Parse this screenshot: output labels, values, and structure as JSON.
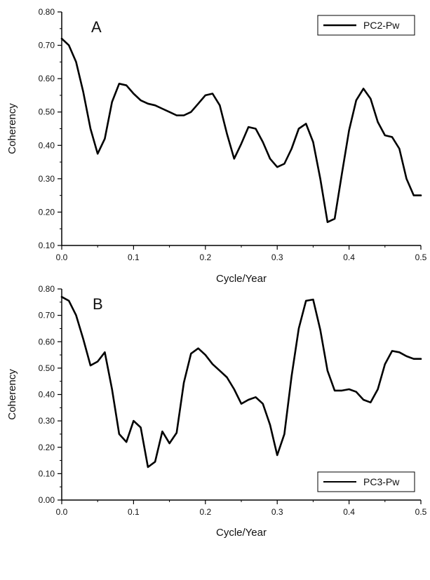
{
  "chart_data": [
    {
      "type": "line",
      "panel_label": "A",
      "xlabel": "Cycle/Year",
      "ylabel": "Coherency",
      "xlim": [
        0,
        0.5
      ],
      "ylim": [
        0.1,
        0.8
      ],
      "x_ticks": [
        "0.0",
        "0.1",
        "0.2",
        "0.3",
        "0.4",
        "0.5"
      ],
      "y_ticks": [
        "0.10",
        "0.20",
        "0.30",
        "0.40",
        "0.50",
        "0.60",
        "0.70",
        "0.80"
      ],
      "grid": false,
      "legend_position": "top-right",
      "line_color": "#000000",
      "series": [
        {
          "name": "PC2-Pw",
          "x": [
            0.0,
            0.01,
            0.02,
            0.03,
            0.04,
            0.05,
            0.06,
            0.07,
            0.08,
            0.09,
            0.1,
            0.11,
            0.12,
            0.13,
            0.14,
            0.15,
            0.16,
            0.17,
            0.18,
            0.19,
            0.2,
            0.21,
            0.22,
            0.23,
            0.24,
            0.25,
            0.26,
            0.27,
            0.28,
            0.29,
            0.3,
            0.31,
            0.32,
            0.33,
            0.34,
            0.35,
            0.36,
            0.37,
            0.38,
            0.39,
            0.4,
            0.41,
            0.42,
            0.43,
            0.44,
            0.45,
            0.46,
            0.47,
            0.48,
            0.49,
            0.5
          ],
          "values": [
            0.72,
            0.7,
            0.65,
            0.56,
            0.45,
            0.375,
            0.42,
            0.53,
            0.585,
            0.58,
            0.555,
            0.535,
            0.525,
            0.52,
            0.51,
            0.5,
            0.49,
            0.49,
            0.5,
            0.525,
            0.55,
            0.555,
            0.52,
            0.435,
            0.36,
            0.405,
            0.455,
            0.45,
            0.41,
            0.36,
            0.335,
            0.345,
            0.39,
            0.45,
            0.465,
            0.41,
            0.3,
            0.17,
            0.18,
            0.315,
            0.445,
            0.535,
            0.57,
            0.54,
            0.47,
            0.43,
            0.425,
            0.39,
            0.3,
            0.25,
            0.25
          ]
        }
      ]
    },
    {
      "type": "line",
      "panel_label": "B",
      "xlabel": "Cycle/Year",
      "ylabel": "Coherency",
      "xlim": [
        0,
        0.5
      ],
      "ylim": [
        0.0,
        0.8
      ],
      "x_ticks": [
        "0.0",
        "0.1",
        "0.2",
        "0.3",
        "0.4",
        "0.5"
      ],
      "y_ticks": [
        "0.00",
        "0.10",
        "0.20",
        "0.30",
        "0.40",
        "0.50",
        "0.60",
        "0.70",
        "0.80"
      ],
      "grid": false,
      "legend_position": "bottom-right",
      "line_color": "#000000",
      "series": [
        {
          "name": "PC3-Pw",
          "x": [
            0.0,
            0.01,
            0.02,
            0.03,
            0.04,
            0.05,
            0.06,
            0.07,
            0.08,
            0.09,
            0.1,
            0.11,
            0.12,
            0.13,
            0.14,
            0.15,
            0.16,
            0.17,
            0.18,
            0.19,
            0.2,
            0.21,
            0.22,
            0.23,
            0.24,
            0.25,
            0.26,
            0.27,
            0.28,
            0.29,
            0.3,
            0.31,
            0.32,
            0.33,
            0.34,
            0.35,
            0.36,
            0.37,
            0.38,
            0.39,
            0.4,
            0.41,
            0.42,
            0.43,
            0.44,
            0.45,
            0.46,
            0.47,
            0.48,
            0.49,
            0.5
          ],
          "values": [
            0.77,
            0.755,
            0.7,
            0.61,
            0.51,
            0.525,
            0.56,
            0.42,
            0.25,
            0.22,
            0.3,
            0.275,
            0.125,
            0.145,
            0.26,
            0.215,
            0.255,
            0.445,
            0.555,
            0.575,
            0.55,
            0.515,
            0.49,
            0.465,
            0.42,
            0.365,
            0.38,
            0.39,
            0.365,
            0.285,
            0.17,
            0.25,
            0.47,
            0.65,
            0.755,
            0.76,
            0.645,
            0.49,
            0.415,
            0.415,
            0.42,
            0.41,
            0.38,
            0.37,
            0.42,
            0.515,
            0.565,
            0.56,
            0.545,
            0.535,
            0.535
          ]
        }
      ]
    }
  ]
}
